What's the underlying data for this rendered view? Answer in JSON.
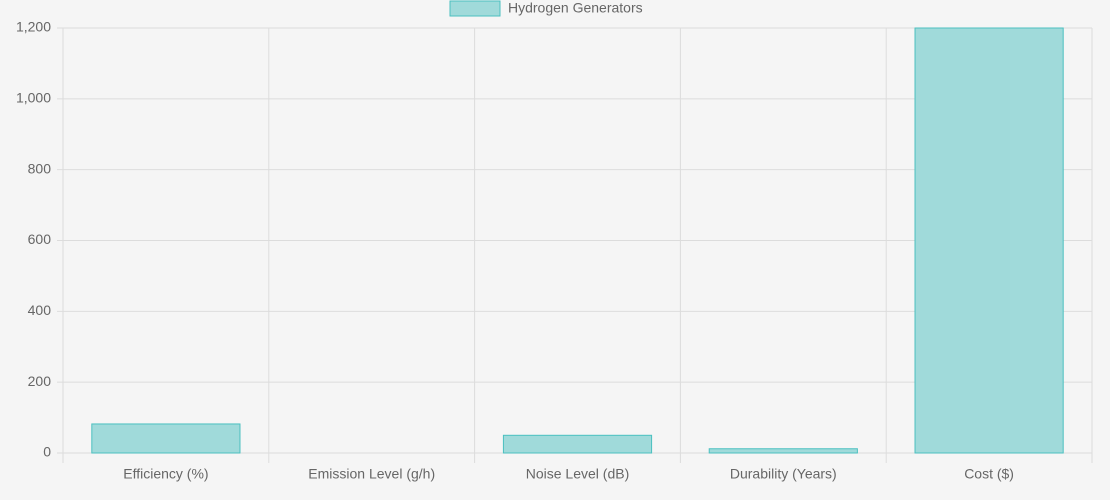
{
  "chart_data": {
    "type": "bar",
    "categories": [
      "Efficiency (%)",
      "Emission Level (g/h)",
      "Noise Level (dB)",
      "Durability (Years)",
      "Cost ($)"
    ],
    "series": [
      {
        "name": "Hydrogen Generators",
        "color": "#a0dada",
        "border_color": "#4bc0c0",
        "values": [
          82,
          0,
          50,
          12,
          1200
        ]
      }
    ],
    "ylim": [
      0,
      1200
    ],
    "yticks": [
      0,
      200,
      400,
      600,
      800,
      {
        "value": 1000,
        "label": "1,000"
      },
      {
        "value": 1200,
        "label": "1,200"
      }
    ],
    "grid": true,
    "legend": "top"
  }
}
